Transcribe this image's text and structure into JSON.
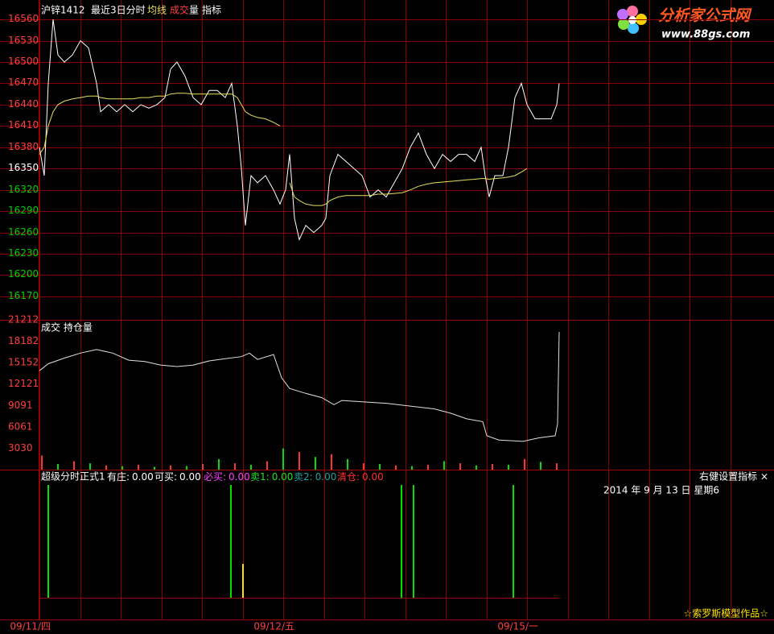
{
  "header": {
    "symbol": "沪锌1412",
    "period": "最近3日分时",
    "ma": "均线",
    "vol_a": "成交",
    "vol_b": "量",
    "indicator": "指标"
  },
  "watermark": {
    "title": "分析家公式网",
    "url": "www.88gs.com"
  },
  "date_label": "2014 年 9 月 13 日 星期6",
  "settings_label": "右健设置指标 ×",
  "credit": "☆索罗斯模型作品☆",
  "chart_data": [
    {
      "type": "line",
      "xlim": [
        0,
        909
      ],
      "xticks": [
        {
          "value": 0,
          "label": "09/11/四"
        },
        {
          "value": 303,
          "label": "09/12/五"
        },
        {
          "value": 606,
          "label": "09/15/一"
        }
      ],
      "ylim": [
        16137,
        16576
      ],
      "yticks": [
        16170,
        16200,
        16230,
        16260,
        16290,
        16320,
        16350,
        16380,
        16410,
        16440,
        16470,
        16500,
        16530,
        16560
      ],
      "ytick_colors": [
        "#00d000",
        "#00d000",
        "#00d000",
        "#00d000",
        "#00d000",
        "#00d000",
        "#ffffff",
        "#ff4040",
        "#ff4040",
        "#ff4040",
        "#ff4040",
        "#ff4040",
        "#ff4040",
        "#ff4040"
      ],
      "grid": true,
      "grid_color": "#8b0000",
      "x": [
        0,
        6,
        11,
        17,
        23,
        31,
        41,
        51,
        61,
        71,
        76,
        86,
        96,
        106,
        116,
        126,
        136,
        146,
        156,
        163,
        171,
        181,
        191,
        201,
        211,
        221,
        231,
        239,
        246,
        251,
        256,
        263,
        271,
        281,
        291,
        299,
        306,
        311,
        317,
        323,
        331,
        341,
        351,
        356,
        361,
        371,
        381,
        391,
        401,
        411,
        421,
        431,
        441,
        451,
        461,
        471,
        481,
        491,
        501,
        511,
        521,
        531,
        541,
        549,
        554,
        559,
        566,
        576,
        583,
        591,
        599,
        606,
        616,
        626,
        636,
        643,
        646
      ],
      "series": [
        {
          "color": "#ffffff",
          "values": [
            16380,
            16340,
            16470,
            16560,
            16510,
            16500,
            16510,
            16530,
            16520,
            16470,
            16430,
            16440,
            16430,
            16440,
            16430,
            16440,
            16435,
            16440,
            16450,
            16490,
            16500,
            16480,
            16450,
            16440,
            16460,
            16460,
            16450,
            16470,
            16410,
            16350,
            16270,
            16340,
            16330,
            16340,
            16320,
            16300,
            16320,
            16370,
            16280,
            16250,
            16270,
            16260,
            16270,
            16280,
            16340,
            16370,
            16360,
            16350,
            16340,
            16310,
            16320,
            16310,
            16330,
            16350,
            16380,
            16400,
            16370,
            16350,
            16370,
            16360,
            16370,
            16370,
            16360,
            16380,
            16340,
            16310,
            16340,
            16340,
            16380,
            16450,
            16470,
            16440,
            16420,
            16420,
            16420,
            16440,
            16470
          ]
        },
        {
          "name": "均线",
          "color": "#e8e060",
          "values": [
            16370,
            16380,
            16410,
            16430,
            16440,
            16445,
            16448,
            16450,
            16452,
            16452,
            16450,
            16448,
            16448,
            16448,
            16448,
            16450,
            16450,
            16452,
            16452,
            16455,
            16456,
            16456,
            16455,
            16455,
            16455,
            16455,
            16455,
            16455,
            16450,
            16440,
            16430,
            16425,
            16422,
            16420,
            16415,
            16410,
            null,
            16330,
            16310,
            16305,
            16300,
            16298,
            16298,
            16300,
            16305,
            16310,
            16312,
            16312,
            16312,
            16312,
            16314,
            16314,
            16315,
            16316,
            16320,
            16325,
            16328,
            16330,
            16331,
            16332,
            16333,
            16334,
            16335,
            16336,
            16336,
            16335,
            16336,
            16337,
            16338,
            16340,
            16345,
            16350,
            null,
            null,
            null,
            null,
            null
          ]
        }
      ]
    },
    {
      "type": "combo",
      "title": "成交 持仓量",
      "xlim": [
        0,
        909
      ],
      "ylim": [
        0,
        21212
      ],
      "yticks": [
        3030,
        6061,
        9091,
        12121,
        15152,
        18182,
        21212
      ],
      "series": [
        {
          "kind": "bar",
          "colors": [
            "#ff3232",
            "#00e000"
          ],
          "x": [
            3,
            23,
            43,
            63,
            83,
            103,
            123,
            143,
            163,
            183,
            203,
            223,
            243,
            263,
            283,
            303,
            323,
            343,
            363,
            383,
            403,
            423,
            443,
            463,
            483,
            503,
            523,
            543,
            563,
            583,
            603,
            623,
            643
          ],
          "values": [
            2000,
            800,
            1200,
            900,
            600,
            500,
            700,
            400,
            600,
            500,
            800,
            1500,
            900,
            700,
            1200,
            3000,
            2500,
            1800,
            2200,
            1500,
            900,
            800,
            600,
            500,
            700,
            1200,
            900,
            600,
            800,
            700,
            1500,
            1100,
            900
          ]
        },
        {
          "kind": "line",
          "color": "#e0e0e0",
          "x": [
            0,
            11,
            31,
            51,
            71,
            91,
            111,
            131,
            151,
            171,
            191,
            211,
            231,
            251,
            261,
            271,
            291,
            301,
            311,
            331,
            351,
            366,
            376,
            401,
            431,
            461,
            491,
            511,
            531,
            551,
            556,
            571,
            601,
            621,
            641,
            644,
            646
          ],
          "values": [
            14000,
            15000,
            15800,
            16500,
            17000,
            16500,
            15500,
            15300,
            14800,
            14600,
            14800,
            15400,
            15700,
            16000,
            16500,
            15600,
            16300,
            13000,
            11500,
            10800,
            10200,
            9200,
            9800,
            9600,
            9400,
            9000,
            8600,
            8000,
            7200,
            6800,
            4800,
            4200,
            4000,
            4500,
            4800,
            6500,
            19500
          ]
        }
      ]
    },
    {
      "type": "bar",
      "title": "超级分时正式1",
      "xlim": [
        0,
        909
      ],
      "ylim": [
        0,
        1
      ],
      "items": [
        {
          "name": "有庄:",
          "value": 0,
          "value_label": "0.00",
          "color": "#ffffff"
        },
        {
          "name": "可买:",
          "value": 0,
          "value_label": "0.00",
          "color": "#ffffff"
        },
        {
          "name": "必买:",
          "value": 0,
          "value_label": "0.00",
          "color": "#ff40ff"
        },
        {
          "name": "卖1:",
          "value": 0,
          "value_label": "0.00",
          "color": "#20e020"
        },
        {
          "name": "卖2:",
          "value": 0,
          "value_label": "0.00",
          "color": "#20a0a0"
        },
        {
          "name": "清仓:",
          "value": 0,
          "value_label": "0.00",
          "color": "#ff3030"
        }
      ],
      "x": [
        11,
        238,
        253,
        450,
        465,
        589
      ],
      "values": [
        1,
        1,
        0.3,
        1,
        1,
        1
      ],
      "colors": [
        "#00e000",
        "#00e000",
        "#ffe000",
        "#00e000",
        "#00e000",
        "#00e000"
      ]
    }
  ]
}
